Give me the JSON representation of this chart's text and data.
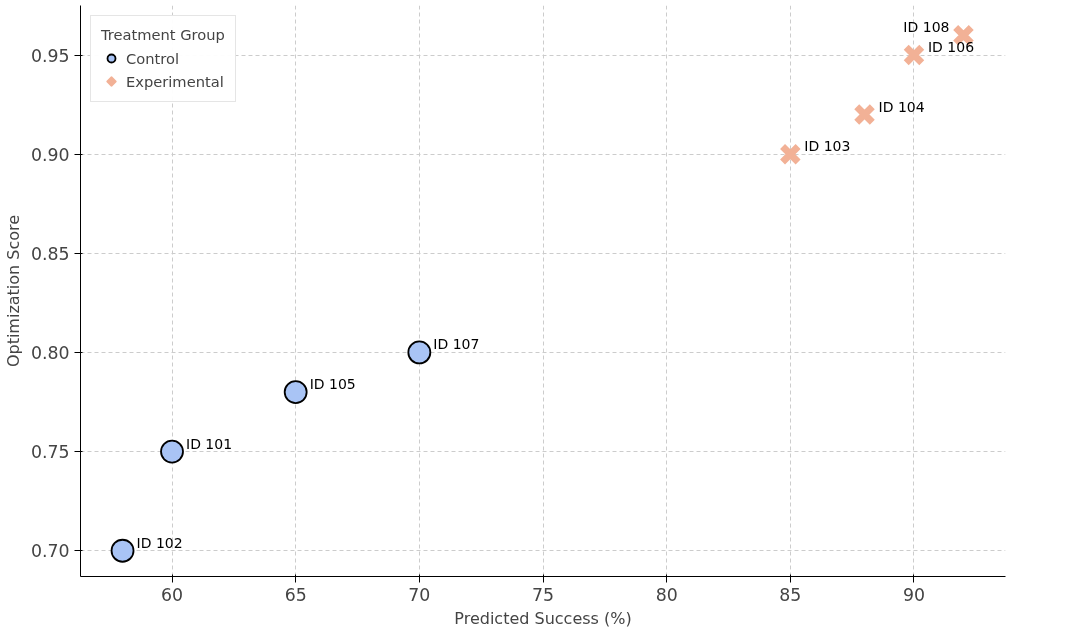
{
  "chart_data": {
    "type": "scatter",
    "xlabel": "Predicted Success (%)",
    "ylabel": "Optimization Score",
    "legend_title": "Treatment Group",
    "legend": "top left",
    "grid": true,
    "xlim": [
      56.3,
      93.7
    ],
    "xticks": [
      60,
      65,
      70,
      75,
      80,
      85,
      90
    ],
    "ylim": [
      0.687,
      0.975
    ],
    "yticks": [
      {
        "value": 0.7,
        "label": "0.70"
      },
      {
        "value": 0.75,
        "label": "0.75"
      },
      {
        "value": 0.8,
        "label": "0.80"
      },
      {
        "value": 0.85,
        "label": "0.85"
      },
      {
        "value": 0.9,
        "label": "0.90"
      },
      {
        "value": 0.95,
        "label": "0.95"
      }
    ],
    "series": [
      {
        "name": "Control",
        "color": "#a9c4f5",
        "marker": "circle",
        "x": [
          58,
          60,
          65,
          70
        ],
        "values": [
          0.7,
          0.75,
          0.78,
          0.8
        ]
      },
      {
        "name": "Experimental",
        "color": "#f2b196",
        "marker": "cross",
        "x": [
          85,
          88,
          90,
          92
        ],
        "values": [
          0.9,
          0.92,
          0.95,
          0.96
        ]
      }
    ],
    "annotations": [
      {
        "text": "ID 102",
        "x": 58,
        "y": 0.7
      },
      {
        "text": "ID 101",
        "x": 60,
        "y": 0.75
      },
      {
        "text": "ID 105",
        "x": 65,
        "y": 0.78
      },
      {
        "text": "ID 107",
        "x": 70,
        "y": 0.8
      },
      {
        "text": "ID 103",
        "x": 85,
        "y": 0.9
      },
      {
        "text": "ID 104",
        "x": 88,
        "y": 0.92
      },
      {
        "text": "ID 106",
        "x": 90,
        "y": 0.95
      },
      {
        "text": "ID 108",
        "x": 92,
        "y": 0.96
      }
    ]
  }
}
